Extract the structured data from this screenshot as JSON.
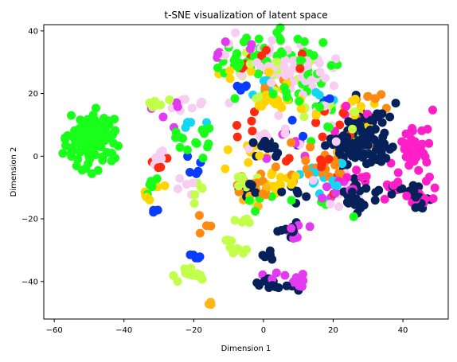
{
  "chart_data": {
    "type": "scatter",
    "title": "t-SNE visualization of latent space",
    "xlabel": "Dimension 1",
    "ylabel": "Dimension 2",
    "xlim": [
      -63,
      53
    ],
    "ylim": [
      -52,
      42
    ],
    "xticks": [
      -60,
      -40,
      -20,
      0,
      20,
      40
    ],
    "yticks": [
      -40,
      -20,
      0,
      20,
      40
    ],
    "xtick_labels": [
      "−60",
      "−40",
      "−20",
      "0",
      "20",
      "40"
    ],
    "ytick_labels": [
      "−40",
      "−20",
      "0",
      "20",
      "40"
    ],
    "grid": false,
    "legend": "none",
    "colors": {
      "navy": "#06205a",
      "magenta": "#ff1fc8",
      "green": "#18ff1a",
      "lime": "#c2ff4a",
      "yellow": "#ffd400",
      "orange": "#ff8a12",
      "red": "#ff2a10",
      "pink": "#f7cdf2",
      "violet": "#e23af0",
      "blue": "#0a3cff",
      "cyan": "#14d6f2",
      "amber": "#ffb818"
    },
    "clusters": [
      {
        "color": "green",
        "cx": -50,
        "cy": 4,
        "sx": 3.2,
        "sy": 4.6,
        "n": 120
      },
      {
        "color": "green",
        "cx": -44,
        "cy": 9,
        "sx": 1.2,
        "sy": 2.5,
        "n": 14
      },
      {
        "color": "green",
        "cx": -32,
        "cy": -9,
        "sx": 0.7,
        "sy": 1.5,
        "n": 8
      },
      {
        "color": "green",
        "cx": 5,
        "cy": 33,
        "sx": 7,
        "sy": 3,
        "n": 30
      },
      {
        "color": "green",
        "cx": 15,
        "cy": 25,
        "sx": 5,
        "sy": 5,
        "n": 15
      },
      {
        "color": "green",
        "cx": -20,
        "cy": 5,
        "sx": 3,
        "sy": 3,
        "n": 14
      },
      {
        "color": "green",
        "cx": 2,
        "cy": 20,
        "sx": 6,
        "sy": 4,
        "n": 10
      },
      {
        "color": "green",
        "cx": 20,
        "cy": 10,
        "sx": 5,
        "sy": 4,
        "n": 8
      },
      {
        "color": "green",
        "cx": 0,
        "cy": -15,
        "sx": 5,
        "sy": 3,
        "n": 6
      },
      {
        "color": "green",
        "cx": 20,
        "cy": -17,
        "sx": 3,
        "sy": 2,
        "n": 4
      },
      {
        "color": "green",
        "cx": -9,
        "cy": 30,
        "sx": 3,
        "sy": 3,
        "n": 10
      },
      {
        "color": "pink",
        "cx": 4,
        "cy": 29,
        "sx": 7,
        "sy": 4,
        "n": 50
      },
      {
        "color": "pink",
        "cx": 12,
        "cy": 25,
        "sx": 4,
        "sy": 3,
        "n": 15
      },
      {
        "color": "pink",
        "cx": -24,
        "cy": 16,
        "sx": 4,
        "sy": 1,
        "n": 8
      },
      {
        "color": "pink",
        "cx": 5,
        "cy": 8,
        "sx": 8,
        "sy": 4,
        "n": 12
      },
      {
        "color": "pink",
        "cx": -30,
        "cy": 0,
        "sx": 1.5,
        "sy": 2,
        "n": 5
      },
      {
        "color": "pink",
        "cx": 20,
        "cy": -10,
        "sx": 4,
        "sy": 3,
        "n": 8
      },
      {
        "color": "pink",
        "cx": 15,
        "cy": 18,
        "sx": 3,
        "sy": 2,
        "n": 6
      },
      {
        "color": "pink",
        "cx": -22,
        "cy": -8,
        "sx": 2,
        "sy": 2,
        "n": 5
      },
      {
        "color": "navy",
        "cx": 28,
        "cy": 3,
        "sx": 4,
        "sy": 5,
        "n": 90
      },
      {
        "color": "navy",
        "cx": 32,
        "cy": 10,
        "sx": 3,
        "sy": 3,
        "n": 20
      },
      {
        "color": "navy",
        "cx": 27,
        "cy": -13,
        "sx": 3,
        "sy": 3,
        "n": 25
      },
      {
        "color": "navy",
        "cx": 45,
        "cy": -14,
        "sx": 1.5,
        "sy": 1.5,
        "n": 12
      },
      {
        "color": "navy",
        "cx": 40,
        "cy": -11,
        "sx": 3,
        "sy": 1.5,
        "n": 10
      },
      {
        "color": "navy",
        "cx": 2,
        "cy": -41,
        "sx": 3,
        "sy": 1,
        "n": 15
      },
      {
        "color": "navy",
        "cx": 1,
        "cy": 3,
        "sx": 2.5,
        "sy": 2,
        "n": 14
      },
      {
        "color": "navy",
        "cx": -5,
        "cy": -11,
        "sx": 2,
        "sy": 1.5,
        "n": 10
      },
      {
        "color": "navy",
        "cx": 8,
        "cy": -23,
        "sx": 2,
        "sy": 1.5,
        "n": 8
      },
      {
        "color": "navy",
        "cx": 2,
        "cy": -32,
        "sx": 1,
        "sy": 1,
        "n": 5
      },
      {
        "color": "navy",
        "cx": 8,
        "cy": -11,
        "sx": 2,
        "sy": 2,
        "n": 6
      },
      {
        "color": "magenta",
        "cx": 43,
        "cy": 3,
        "sx": 2.5,
        "sy": 4,
        "n": 40
      },
      {
        "color": "magenta",
        "cx": 46,
        "cy": -14,
        "sx": 1.5,
        "sy": 1.2,
        "n": 12
      },
      {
        "color": "magenta",
        "cx": 35,
        "cy": -10,
        "sx": 5,
        "sy": 1.5,
        "n": 12
      },
      {
        "color": "magenta",
        "cx": 26,
        "cy": 12,
        "sx": 3,
        "sy": 3,
        "n": 10
      },
      {
        "color": "magenta",
        "cx": 24,
        "cy": -5,
        "sx": 4,
        "sy": 3,
        "n": 8
      },
      {
        "color": "violet",
        "cx": 9,
        "cy": -24,
        "sx": 2,
        "sy": 1,
        "n": 10
      },
      {
        "color": "violet",
        "cx": 10,
        "cy": -40,
        "sx": 1,
        "sy": 0.8,
        "n": 10
      },
      {
        "color": "violet",
        "cx": 20,
        "cy": -11,
        "sx": 3,
        "sy": 2,
        "n": 8
      },
      {
        "color": "violet",
        "cx": -10,
        "cy": 32,
        "sx": 4,
        "sy": 2,
        "n": 8
      },
      {
        "color": "violet",
        "cx": -25,
        "cy": 15,
        "sx": 3,
        "sy": 2,
        "n": 5
      },
      {
        "color": "violet",
        "cx": 5,
        "cy": 5,
        "sx": 5,
        "sy": 4,
        "n": 6
      },
      {
        "color": "violet",
        "cx": 2,
        "cy": -38,
        "sx": 3,
        "sy": 1,
        "n": 5
      },
      {
        "color": "lime",
        "cx": -20,
        "cy": -38,
        "sx": 2,
        "sy": 1,
        "n": 14
      },
      {
        "color": "lime",
        "cx": -9,
        "cy": -29,
        "sx": 2,
        "sy": 1.5,
        "n": 10
      },
      {
        "color": "lime",
        "cx": -5,
        "cy": -10,
        "sx": 2,
        "sy": 2,
        "n": 10
      },
      {
        "color": "lime",
        "cx": 2,
        "cy": 25,
        "sx": 5,
        "sy": 5,
        "n": 15
      },
      {
        "color": "lime",
        "cx": -30,
        "cy": 16,
        "sx": 2,
        "sy": 1,
        "n": 6
      },
      {
        "color": "lime",
        "cx": 20,
        "cy": 15,
        "sx": 4,
        "sy": 3,
        "n": 8
      },
      {
        "color": "lime",
        "cx": -6,
        "cy": -21,
        "sx": 2,
        "sy": 1,
        "n": 5
      },
      {
        "color": "lime",
        "cx": -20,
        "cy": -12,
        "sx": 2,
        "sy": 2,
        "n": 5
      },
      {
        "color": "yellow",
        "cx": 5,
        "cy": 17,
        "sx": 6,
        "sy": 2,
        "n": 18
      },
      {
        "color": "yellow",
        "cx": 5,
        "cy": -8,
        "sx": 4,
        "sy": 2,
        "n": 14
      },
      {
        "color": "yellow",
        "cx": -32,
        "cy": -12,
        "sx": 1.5,
        "sy": 1.5,
        "n": 6
      },
      {
        "color": "yellow",
        "cx": 25,
        "cy": 15,
        "sx": 4,
        "sy": 3,
        "n": 10
      },
      {
        "color": "yellow",
        "cx": -5,
        "cy": 0,
        "sx": 3,
        "sy": 3,
        "n": 8
      },
      {
        "color": "yellow",
        "cx": -3,
        "cy": 28,
        "sx": 4,
        "sy": 3,
        "n": 6
      },
      {
        "color": "orange",
        "cx": 15,
        "cy": -2,
        "sx": 6,
        "sy": 4,
        "n": 18
      },
      {
        "color": "orange",
        "cx": -2,
        "cy": -10,
        "sx": 3,
        "sy": 2,
        "n": 10
      },
      {
        "color": "orange",
        "cx": 30,
        "cy": 18,
        "sx": 3,
        "sy": 2,
        "n": 8
      },
      {
        "color": "orange",
        "cx": 5,
        "cy": 22,
        "sx": 3,
        "sy": 2,
        "n": 6
      },
      {
        "color": "orange",
        "cx": 20,
        "cy": -4,
        "sx": 3,
        "sy": 2,
        "n": 8
      },
      {
        "color": "orange",
        "cx": -15,
        "cy": -22,
        "sx": 2,
        "sy": 2,
        "n": 4
      },
      {
        "color": "red",
        "cx": 8,
        "cy": 30,
        "sx": 5,
        "sy": 3,
        "n": 10
      },
      {
        "color": "red",
        "cx": -30,
        "cy": -2,
        "sx": 1.5,
        "sy": 1,
        "n": 4
      },
      {
        "color": "red",
        "cx": 15,
        "cy": -3,
        "sx": 5,
        "sy": 4,
        "n": 8
      },
      {
        "color": "red",
        "cx": 20,
        "cy": 10,
        "sx": 3,
        "sy": 3,
        "n": 6
      },
      {
        "color": "red",
        "cx": -5,
        "cy": 10,
        "sx": 3,
        "sy": 2,
        "n": 5
      },
      {
        "color": "blue",
        "cx": -19,
        "cy": -31.5,
        "sx": 1.2,
        "sy": 0.8,
        "n": 6
      },
      {
        "color": "blue",
        "cx": -20,
        "cy": -3,
        "sx": 1,
        "sy": 2,
        "n": 5
      },
      {
        "color": "blue",
        "cx": -6,
        "cy": 22,
        "sx": 2,
        "sy": 1,
        "n": 5
      },
      {
        "color": "blue",
        "cx": -31,
        "cy": -17,
        "sx": 1,
        "sy": 1,
        "n": 3
      },
      {
        "color": "blue",
        "cx": 10,
        "cy": 8,
        "sx": 3,
        "sy": 3,
        "n": 4
      },
      {
        "color": "blue",
        "cx": 20,
        "cy": 18,
        "sx": 2,
        "sy": 2,
        "n": 3
      },
      {
        "color": "cyan",
        "cx": 13,
        "cy": -5,
        "sx": 2,
        "sy": 3,
        "n": 10
      },
      {
        "color": "cyan",
        "cx": -19,
        "cy": 10,
        "sx": 2,
        "sy": 1,
        "n": 5
      },
      {
        "color": "cyan",
        "cx": 0,
        "cy": 22,
        "sx": 3,
        "sy": 2,
        "n": 5
      },
      {
        "color": "cyan",
        "cx": 18,
        "cy": 20,
        "sx": 2,
        "sy": 2,
        "n": 4
      },
      {
        "color": "cyan",
        "cx": 22,
        "cy": -8,
        "sx": 2,
        "sy": 2,
        "n": 4
      },
      {
        "color": "amber",
        "cx": -15,
        "cy": -47,
        "sx": 0.6,
        "sy": 0.6,
        "n": 4
      },
      {
        "color": "amber",
        "cx": -3,
        "cy": -12,
        "sx": 2,
        "sy": 2,
        "n": 5
      },
      {
        "color": "amber",
        "cx": 25,
        "cy": 5,
        "sx": 3,
        "sy": 3,
        "n": 4
      }
    ]
  }
}
